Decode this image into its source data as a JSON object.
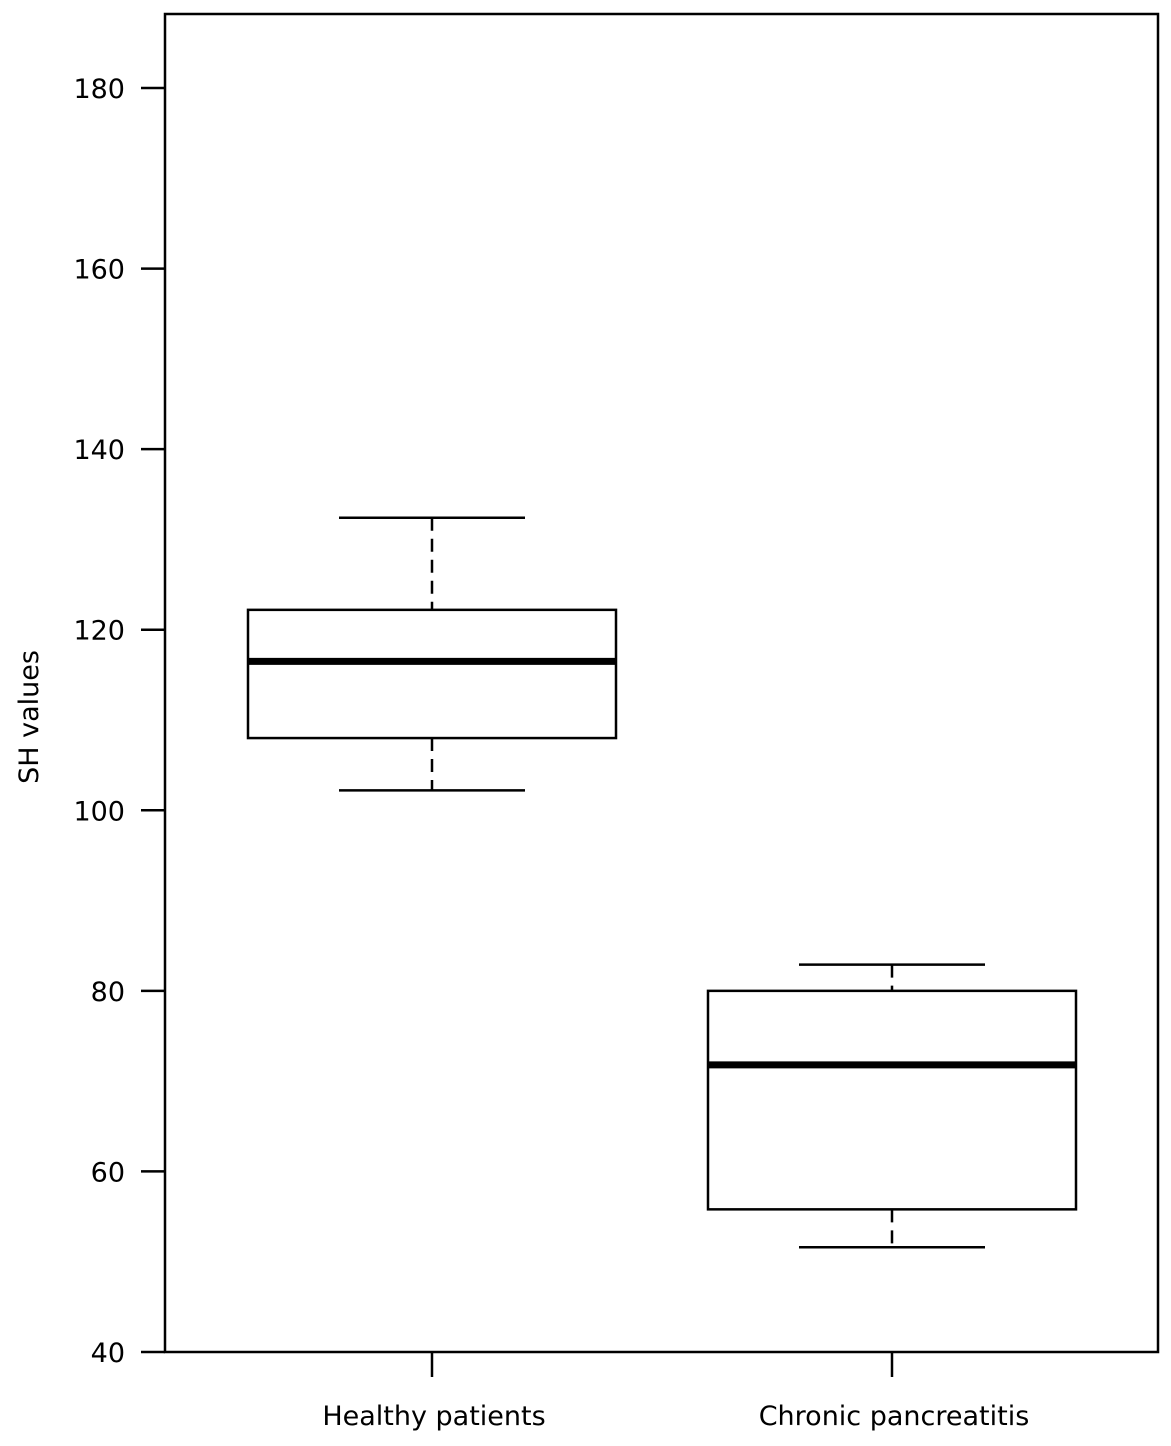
{
  "chart_data": {
    "type": "boxplot",
    "title": "",
    "xlabel": "",
    "ylabel": "SH values",
    "ylim": [
      40,
      187
    ],
    "yticks": [
      40,
      60,
      80,
      100,
      120,
      140,
      160,
      180
    ],
    "grid": false,
    "legend": null,
    "categories": [
      "Healthy patients",
      "Chronic pancreatitis"
    ],
    "series": [
      {
        "name": "Healthy patients",
        "whisker_low": 102.2,
        "q1": 108.0,
        "median": 116.5,
        "q3": 122.2,
        "whisker_high": 132.4
      },
      {
        "name": "Chronic pancreatitis",
        "whisker_low": 51.6,
        "q1": 55.8,
        "median": 71.8,
        "q3": 80.0,
        "whisker_high": 82.9
      }
    ]
  },
  "style": {
    "line_color": "#000000",
    "box_fill": "#ffffff",
    "background": "#ffffff"
  }
}
